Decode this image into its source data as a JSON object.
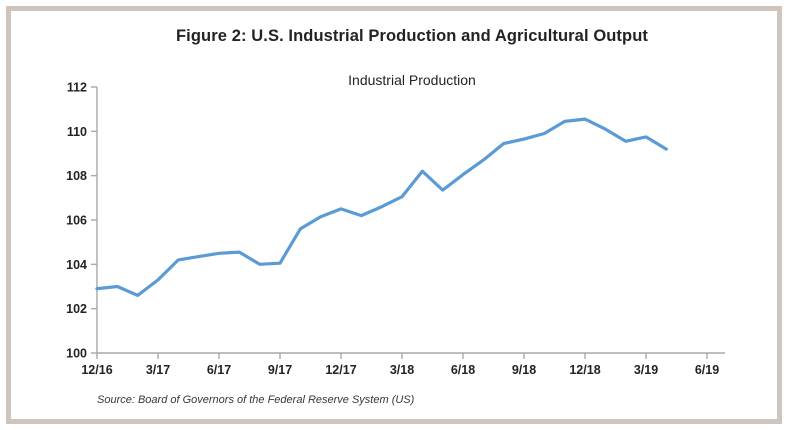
{
  "figure": {
    "title": "Figure 2: U.S. Industrial Production and Agricultural Output",
    "source": "Source: Board of Governors of the Federal Reserve System (US)"
  },
  "colors": {
    "line": "#5B9BD5",
    "axis": "#A9A9A9",
    "tick_text": "#262223",
    "frame_border": "#CFC5BC",
    "background": "#FFFFFF"
  },
  "chart_data": {
    "type": "line",
    "title": "Industrial Production",
    "xlabel": "",
    "ylabel": "",
    "grid": false,
    "legend": "none",
    "ylim": [
      100,
      112
    ],
    "y_ticks": [
      100,
      102,
      104,
      106,
      108,
      110,
      112
    ],
    "x_tick_labels": [
      "12/16",
      "3/17",
      "6/17",
      "9/17",
      "12/17",
      "3/18",
      "6/18",
      "9/18",
      "12/18",
      "3/19",
      "6/19"
    ],
    "months_per_tick": 3,
    "x_axis_total_months": 30,
    "series": [
      {
        "name": "Industrial Production",
        "x": [
          "12/16",
          "1/17",
          "2/17",
          "3/17",
          "4/17",
          "5/17",
          "6/17",
          "7/17",
          "8/17",
          "9/17",
          "10/17",
          "11/17",
          "12/17",
          "1/18",
          "2/18",
          "3/18",
          "4/18",
          "5/18",
          "6/18",
          "7/18",
          "8/18",
          "9/18",
          "10/18",
          "11/18",
          "12/18",
          "1/19",
          "2/19",
          "3/19",
          "4/19"
        ],
        "values": [
          102.9,
          103.0,
          102.6,
          103.3,
          104.2,
          104.35,
          104.5,
          104.55,
          104.0,
          104.05,
          105.6,
          106.15,
          106.5,
          106.2,
          106.6,
          107.05,
          108.2,
          107.35,
          108.05,
          108.7,
          109.45,
          109.65,
          109.9,
          110.45,
          110.55,
          110.1,
          109.55,
          109.75,
          109.2
        ]
      }
    ]
  }
}
